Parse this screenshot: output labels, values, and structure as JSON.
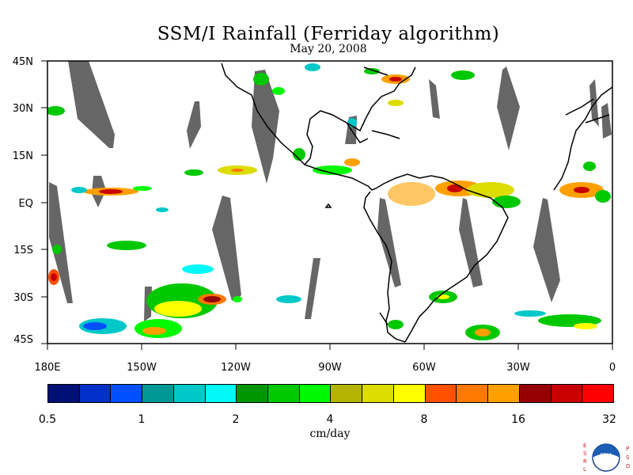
{
  "title": "SSM/I Rainfall (Ferriday algorithm)",
  "subtitle": "May 20, 2008",
  "lat_labels": [
    "45N",
    "30N",
    "15N",
    "EQ",
    "15S",
    "30S",
    "45S"
  ],
  "lon_labels": [
    "180E",
    "150W",
    "120W",
    "90W",
    "60W",
    "30W",
    "0"
  ],
  "colorbar": {
    "colors": [
      "#001074",
      "#0030c8",
      "#0050ff",
      "#009896",
      "#00c8c8",
      "#00f8f8",
      "#009600",
      "#00c800",
      "#00f800",
      "#b4b400",
      "#dcdc00",
      "#ffff00",
      "#ff5000",
      "#ff7800",
      "#ffa000",
      "#960000",
      "#c80000",
      "#ff0000"
    ],
    "tick_labels": [
      "0.5",
      "1",
      "2",
      "4",
      "8",
      "16",
      "32"
    ],
    "unit": "cm/day"
  },
  "logo": {
    "left_letters": "E S R L",
    "right_letters": "P S D",
    "text": "NOAA"
  }
}
